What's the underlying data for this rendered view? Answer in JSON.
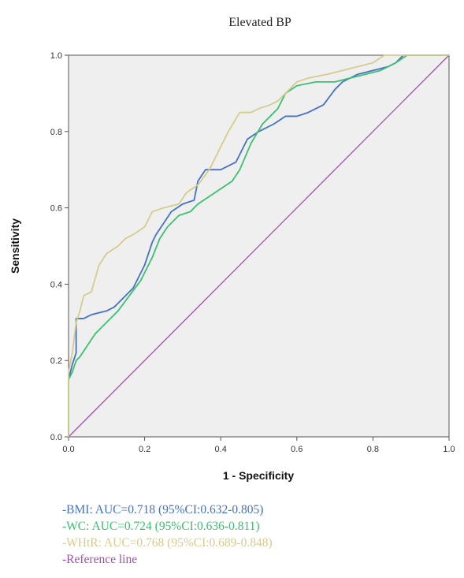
{
  "chart_data": {
    "type": "line",
    "title": "Elevated BP",
    "xlabel": "1 - Specificity",
    "ylabel": "Sensitivity",
    "xlim": [
      0,
      1
    ],
    "ylim": [
      0,
      1
    ],
    "x_ticks": [
      "0.0",
      "0.2",
      "0.4",
      "0.6",
      "0.8",
      "1.0"
    ],
    "y_ticks": [
      "0.0",
      "0.2",
      "0.4",
      "0.6",
      "0.8",
      "1.0"
    ],
    "grid": false,
    "legend_position": "bottom-left",
    "series": [
      {
        "name": "-BMI: AUC=0.718 (95%CI:0.632-0.805)",
        "color": "#4472c4",
        "points": [
          [
            0,
            0
          ],
          [
            0,
            0.15
          ],
          [
            0.01,
            0.19
          ],
          [
            0.02,
            0.22
          ],
          [
            0.02,
            0.31
          ],
          [
            0.04,
            0.31
          ],
          [
            0.06,
            0.32
          ],
          [
            0.1,
            0.33
          ],
          [
            0.12,
            0.34
          ],
          [
            0.15,
            0.37
          ],
          [
            0.17,
            0.39
          ],
          [
            0.19,
            0.43
          ],
          [
            0.2,
            0.45
          ],
          [
            0.21,
            0.48
          ],
          [
            0.22,
            0.51
          ],
          [
            0.23,
            0.53
          ],
          [
            0.25,
            0.56
          ],
          [
            0.27,
            0.59
          ],
          [
            0.3,
            0.61
          ],
          [
            0.33,
            0.62
          ],
          [
            0.34,
            0.67
          ],
          [
            0.36,
            0.7
          ],
          [
            0.4,
            0.7
          ],
          [
            0.44,
            0.72
          ],
          [
            0.47,
            0.78
          ],
          [
            0.5,
            0.8
          ],
          [
            0.54,
            0.82
          ],
          [
            0.57,
            0.84
          ],
          [
            0.6,
            0.84
          ],
          [
            0.63,
            0.85
          ],
          [
            0.67,
            0.87
          ],
          [
            0.7,
            0.91
          ],
          [
            0.72,
            0.93
          ],
          [
            0.76,
            0.95
          ],
          [
            0.8,
            0.96
          ],
          [
            0.84,
            0.97
          ],
          [
            0.86,
            0.98
          ],
          [
            0.88,
            1.0
          ],
          [
            1.0,
            1.0
          ]
        ]
      },
      {
        "name": "-WC: AUC=0.724 (95%CI:0.636-0.811)",
        "color": "#3cc070",
        "points": [
          [
            0,
            0
          ],
          [
            0,
            0.15
          ],
          [
            0.01,
            0.17
          ],
          [
            0.02,
            0.2
          ],
          [
            0.03,
            0.21
          ],
          [
            0.05,
            0.24
          ],
          [
            0.07,
            0.27
          ],
          [
            0.1,
            0.3
          ],
          [
            0.13,
            0.33
          ],
          [
            0.16,
            0.37
          ],
          [
            0.19,
            0.41
          ],
          [
            0.22,
            0.47
          ],
          [
            0.24,
            0.52
          ],
          [
            0.26,
            0.55
          ],
          [
            0.29,
            0.58
          ],
          [
            0.32,
            0.59
          ],
          [
            0.34,
            0.61
          ],
          [
            0.37,
            0.63
          ],
          [
            0.4,
            0.65
          ],
          [
            0.43,
            0.67
          ],
          [
            0.45,
            0.7
          ],
          [
            0.48,
            0.77
          ],
          [
            0.51,
            0.82
          ],
          [
            0.53,
            0.84
          ],
          [
            0.55,
            0.86
          ],
          [
            0.57,
            0.9
          ],
          [
            0.6,
            0.92
          ],
          [
            0.65,
            0.93
          ],
          [
            0.7,
            0.93
          ],
          [
            0.74,
            0.94
          ],
          [
            0.78,
            0.95
          ],
          [
            0.82,
            0.96
          ],
          [
            0.86,
            0.98
          ],
          [
            0.89,
            1.0
          ],
          [
            1.0,
            1.0
          ]
        ]
      },
      {
        "name": "-WHtR: AUC=0.768 (95%CI:0.689-0.848)",
        "color": "#d4cc8c",
        "points": [
          [
            0,
            0
          ],
          [
            0,
            0.17
          ],
          [
            0.01,
            0.22
          ],
          [
            0.02,
            0.3
          ],
          [
            0.03,
            0.33
          ],
          [
            0.04,
            0.37
          ],
          [
            0.06,
            0.38
          ],
          [
            0.08,
            0.45
          ],
          [
            0.1,
            0.48
          ],
          [
            0.13,
            0.5
          ],
          [
            0.15,
            0.52
          ],
          [
            0.17,
            0.53
          ],
          [
            0.2,
            0.55
          ],
          [
            0.22,
            0.59
          ],
          [
            0.25,
            0.6
          ],
          [
            0.29,
            0.61
          ],
          [
            0.31,
            0.64
          ],
          [
            0.34,
            0.66
          ],
          [
            0.37,
            0.7
          ],
          [
            0.39,
            0.74
          ],
          [
            0.42,
            0.8
          ],
          [
            0.45,
            0.85
          ],
          [
            0.48,
            0.85
          ],
          [
            0.5,
            0.86
          ],
          [
            0.53,
            0.87
          ],
          [
            0.55,
            0.88
          ],
          [
            0.57,
            0.9
          ],
          [
            0.6,
            0.93
          ],
          [
            0.63,
            0.94
          ],
          [
            0.68,
            0.95
          ],
          [
            0.72,
            0.96
          ],
          [
            0.76,
            0.97
          ],
          [
            0.8,
            0.98
          ],
          [
            0.83,
            1.0
          ],
          [
            1.0,
            1.0
          ]
        ]
      },
      {
        "name": "-Reference line",
        "color": "#a050b0",
        "points": [
          [
            0,
            0
          ],
          [
            1,
            1
          ]
        ]
      }
    ]
  }
}
